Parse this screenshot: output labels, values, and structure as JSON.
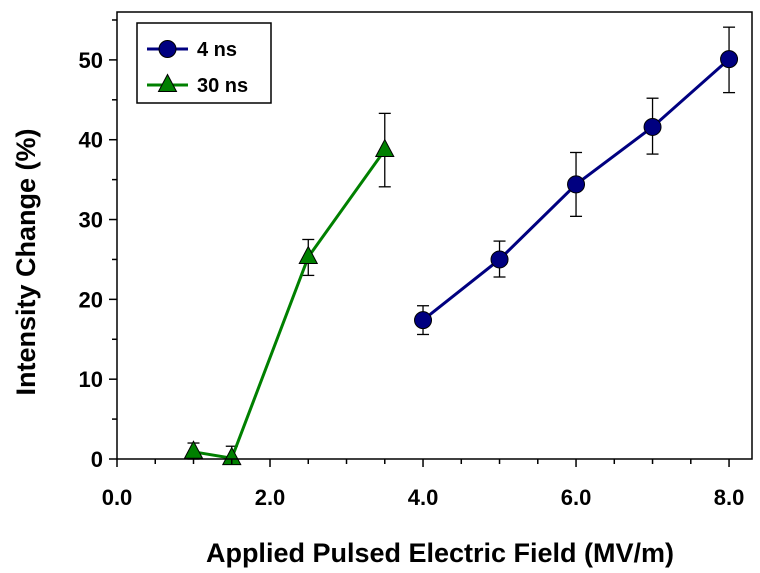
{
  "chart_data": {
    "type": "line",
    "xlabel": "Applied Pulsed Electric Field (MV/m)",
    "ylabel": "Intensity Change (%)",
    "xlim": [
      0,
      8.3
    ],
    "ylim": [
      0,
      56
    ],
    "x_ticks": [
      "0.0",
      "2.0",
      "4.0",
      "6.0",
      "8.0"
    ],
    "x_tick_values": [
      0,
      2,
      4,
      6,
      8
    ],
    "y_ticks": [
      "0",
      "10",
      "20",
      "30",
      "40",
      "50"
    ],
    "y_tick_values": [
      0,
      10,
      20,
      30,
      40,
      50
    ],
    "grid": false,
    "legend_position": "top-left",
    "series": [
      {
        "name": "4 ns",
        "color": "#000080",
        "marker": "circle",
        "x": [
          4,
          5,
          6,
          7,
          8
        ],
        "y": [
          17.4,
          25.0,
          34.4,
          41.6,
          50.1
        ],
        "err_low": [
          1.8,
          2.2,
          4.0,
          3.4,
          4.2
        ],
        "err_high": [
          1.8,
          2.3,
          4.0,
          3.6,
          4.0
        ]
      },
      {
        "name": "30 ns",
        "color": "#008000",
        "marker": "triangle",
        "x": [
          1,
          1.5,
          2.5,
          3.5
        ],
        "y": [
          0.9,
          0.1,
          25.3,
          38.7
        ],
        "err_low": [
          0.9,
          0.1,
          2.3,
          4.6
        ],
        "err_high": [
          1.1,
          1.5,
          2.2,
          4.6
        ]
      }
    ]
  }
}
